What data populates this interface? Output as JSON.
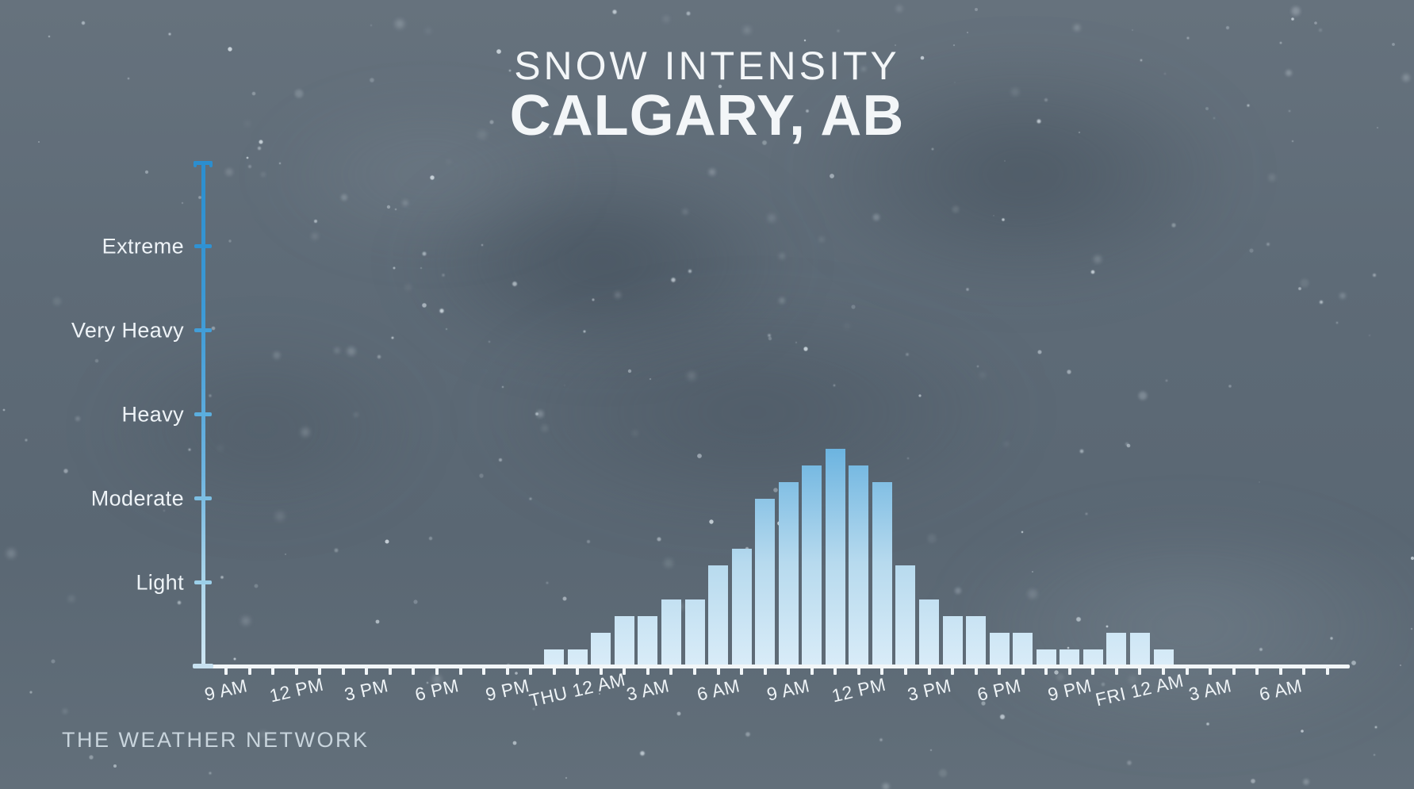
{
  "title": {
    "line1": "SNOW INTENSITY",
    "line2": "CALGARY, AB"
  },
  "branding": {
    "watermark": "THE WEATHER NETWORK"
  },
  "chart_data": {
    "type": "bar",
    "title": "Snow Intensity",
    "subtitle": "Calgary, AB",
    "grid": false,
    "legend": "none",
    "y_axis": {
      "kind": "categorical intensity scale with arrow cap at top",
      "tick_labels": [
        "Light",
        "Moderate",
        "Heavy",
        "Very Heavy",
        "Extreme"
      ],
      "tick_values": [
        1,
        2,
        3,
        4,
        5
      ],
      "ylim": [
        0,
        6
      ]
    },
    "x_axis": {
      "tick_interval_hours": 1,
      "label_interval_hours": 3,
      "total_hour_ticks": 48,
      "labels": [
        "9 AM",
        "12 PM",
        "3 PM",
        "6 PM",
        "9 PM",
        "THU 12 AM",
        "3 AM",
        "6 AM",
        "9 AM",
        "12 PM",
        "3 PM",
        "6 PM",
        "9 PM",
        "FRI 12 AM",
        "3 AM",
        "6 AM"
      ]
    },
    "series": [
      {
        "name": "Snow intensity",
        "start_hour_offset_from_first_tick": 14,
        "categories": [
          "WED 11 PM",
          "THU 12 AM",
          "1 AM",
          "2 AM",
          "3 AM",
          "4 AM",
          "5 AM",
          "6 AM",
          "7 AM",
          "8 AM",
          "9 AM",
          "10 AM",
          "11 AM",
          "12 PM",
          "1 PM",
          "2 PM",
          "3 PM",
          "4 PM",
          "5 PM",
          "6 PM",
          "7 PM",
          "8 PM",
          "9 PM",
          "10 PM",
          "11 PM",
          "FRI 12 AM",
          "1 AM"
        ],
        "values": [
          0.2,
          0.2,
          0.4,
          0.6,
          0.6,
          0.8,
          0.8,
          1.2,
          1.4,
          2.0,
          2.2,
          2.4,
          2.6,
          2.4,
          2.2,
          1.2,
          0.8,
          0.6,
          0.6,
          0.4,
          0.4,
          0.2,
          0.2,
          0.2,
          0.4,
          0.4,
          0.2
        ],
        "value_unit": "intensity level (1 = Light, 2 = Moderate, 3 = Heavy, 4 = Very Heavy, 5 = Extreme)",
        "peak": {
          "category": "THU 11 AM",
          "value": 2.6
        }
      }
    ]
  },
  "colors": {
    "background_base": "#5e6b77",
    "title_text": "#f3f6f8",
    "axis_label_text": "#eef3f6",
    "watermark_text": "#c9d5dd",
    "x_axis_line": "#f2f6f8",
    "y_axis_top": "#2b8ecf",
    "y_axis_bottom": "#cfe6f3",
    "bar_top": "#6cb4e0",
    "bar_bottom": "#d9ecf8",
    "y_tick_colors": [
      "#9ccfe9",
      "#7cbfe3",
      "#5baede",
      "#429ed8",
      "#2f92d3"
    ]
  }
}
